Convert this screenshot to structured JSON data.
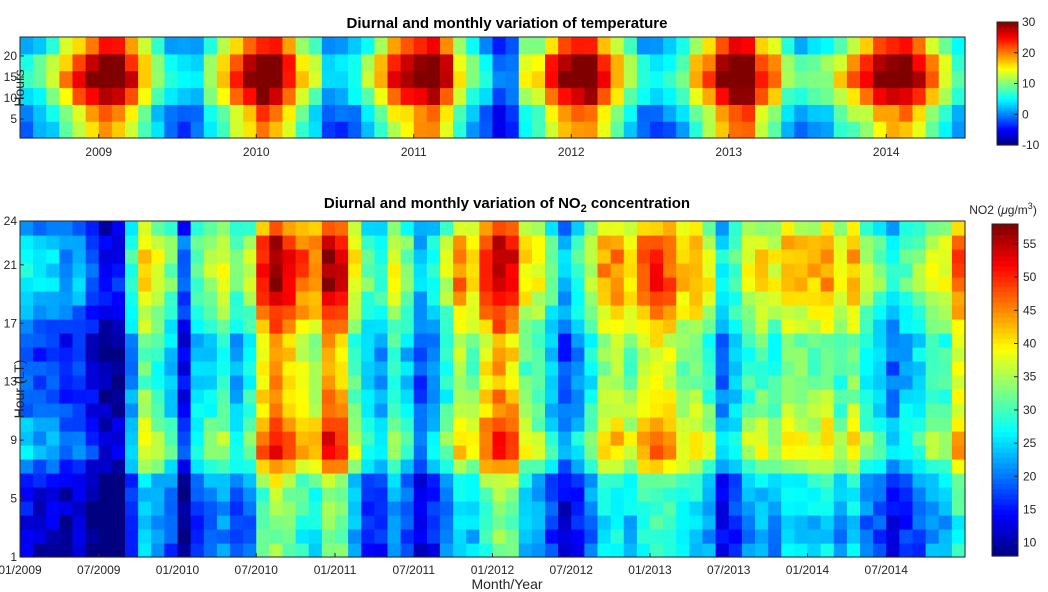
{
  "chart_data": [
    {
      "type": "heatmap",
      "title": "Diurnal and monthly variation of temperature",
      "ylabel": "Hours",
      "xlabel": "",
      "x_ticks": [
        "2009",
        "2010",
        "2011",
        "2012",
        "2013",
        "2014"
      ],
      "y_ticks": [
        "5",
        "10",
        "15",
        "20"
      ],
      "x_range": [
        "01/2009",
        "12/2014"
      ],
      "y_range": [
        1,
        24
      ],
      "colorbar": {
        "min": -10,
        "max": 30,
        "ticks": [
          "-10",
          "0",
          "10",
          "20",
          "30"
        ],
        "colormap": "jet"
      },
      "monthly_mean_approx": {
        "years": [
          "2009",
          "2010",
          "2011",
          "2012",
          "2013",
          "2014"
        ],
        "values": [
          [
            4,
            5,
            9,
            14,
            19,
            23,
            26,
            25,
            20,
            13,
            7,
            2
          ],
          [
            1,
            2,
            8,
            13,
            18,
            23,
            27,
            25,
            19,
            12,
            8,
            1
          ],
          [
            1,
            3,
            7,
            14,
            19,
            22,
            25,
            26,
            21,
            12,
            6,
            2
          ],
          [
            -4,
            -2,
            10,
            12,
            19,
            23,
            26,
            27,
            20,
            13,
            8,
            3
          ],
          [
            2,
            3,
            6,
            13,
            17,
            24,
            28,
            27,
            19,
            15,
            7,
            4
          ],
          [
            6,
            7,
            11,
            15,
            18,
            23,
            25,
            25,
            21,
            15,
            10,
            5
          ]
        ],
        "diurnal_amplitude": 8,
        "peak_hour": 15
      }
    },
    {
      "type": "heatmap",
      "title": "Diurnal and monthly variation of NO",
      "title_sub": "2",
      "title_tail": " concentration",
      "ylabel": "Hour (LT)",
      "xlabel": "Month/Year",
      "x_ticks": [
        "01/2009",
        "07/2009",
        "01/2010",
        "07/2010",
        "01/2011",
        "07/2011",
        "01/2012",
        "07/2012",
        "01/2013",
        "07/2013",
        "01/2014",
        "07/2014"
      ],
      "y_ticks": [
        "1",
        "5",
        "9",
        "13",
        "17",
        "21",
        "24"
      ],
      "y_range": [
        1,
        24
      ],
      "colorbar": {
        "label_prefix": "NO2 (",
        "label_mu": "μ",
        "label_unit": "g/m",
        "label_exp": "3",
        "label_suffix": ")",
        "min": 8,
        "max": 58,
        "ticks": [
          "10",
          "15",
          "20",
          "25",
          "30",
          "35",
          "40",
          "45",
          "50",
          "55"
        ],
        "colormap": "jet"
      },
      "monthly_level_approx": [
        20,
        18,
        18,
        16,
        17,
        13,
        10,
        10,
        22,
        33,
        30,
        25,
        14,
        24,
        27,
        30,
        24,
        28,
        40,
        45,
        42,
        38,
        36,
        45,
        43,
        31,
        24,
        23,
        30,
        25,
        18,
        22,
        28,
        36,
        33,
        40,
        45,
        42,
        32,
        30,
        24,
        18,
        22,
        28,
        35,
        36,
        33,
        38,
        40,
        38,
        34,
        35,
        30,
        20,
        24,
        30,
        32,
        30,
        34,
        33,
        33,
        35,
        30,
        34,
        28,
        25,
        20,
        24,
        26,
        30,
        30,
        38
      ],
      "diurnal_profile_approx": [
        -8,
        -8,
        -8,
        -7,
        -7,
        -5,
        1,
        5,
        5,
        3,
        1,
        0,
        -1,
        -1,
        -1,
        -1,
        2,
        4,
        6,
        8,
        8,
        8,
        7,
        3
      ]
    }
  ]
}
